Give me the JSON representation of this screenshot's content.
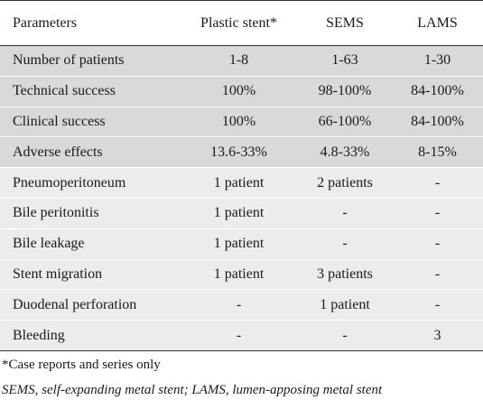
{
  "table": {
    "headers": [
      "Parameters",
      "Plastic stent*",
      "SEMS",
      "LAMS"
    ],
    "rows": [
      {
        "label": "Number of patients",
        "plastic": "1-8",
        "sems": "1-63",
        "lams": "1-30"
      },
      {
        "label": "Technical success",
        "plastic": "100%",
        "sems": "98-100%",
        "lams": "84-100%"
      },
      {
        "label": "Clinical success",
        "plastic": "100%",
        "sems": "66-100%",
        "lams": "84-100%"
      },
      {
        "label": "Adverse effects",
        "plastic": "13.6-33%",
        "sems": "4.8-33%",
        "lams": "8-15%"
      },
      {
        "label": "Pneumoperitoneum",
        "plastic": "1 patient",
        "sems": "2 patients",
        "lams": "-"
      },
      {
        "label": "Bile peritonitis",
        "plastic": "1 patient",
        "sems": "-",
        "lams": "-"
      },
      {
        "label": "Bile leakage",
        "plastic": "1 patient",
        "sems": "-",
        "lams": "-"
      },
      {
        "label": "Stent migration",
        "plastic": "1 patient",
        "sems": "3 patients",
        "lams": "-"
      },
      {
        "label": "Duodenal perforation",
        "plastic": "-",
        "sems": "1 patient",
        "lams": "-"
      },
      {
        "label": "Bleeding",
        "plastic": "-",
        "sems": "-",
        "lams": "3"
      }
    ]
  },
  "notes": {
    "footnote": "*Case reports and series only",
    "abbreviations": "SEMS, self-expanding metal stent; LAMS, lumen-apposing metal stent"
  }
}
